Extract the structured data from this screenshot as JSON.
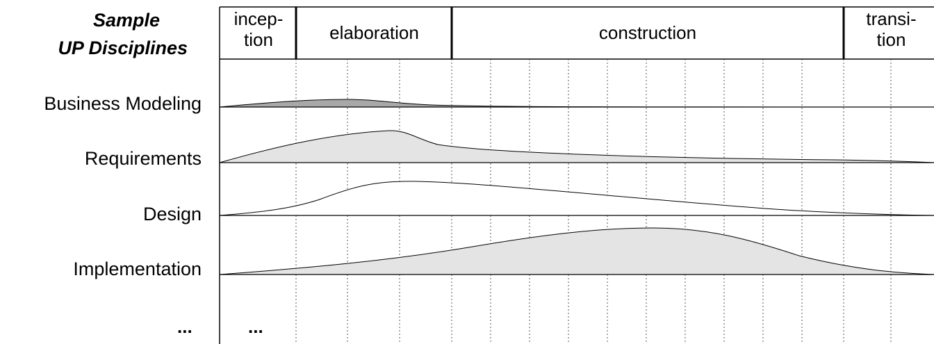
{
  "title": {
    "line1": "Sample",
    "line2": "UP Disciplines"
  },
  "phases": [
    {
      "id": "inception",
      "line1": "incep-",
      "line2": "tion"
    },
    {
      "id": "elaboration",
      "line1": "elaboration",
      "line2": ""
    },
    {
      "id": "construction",
      "line1": "construction",
      "line2": ""
    },
    {
      "id": "transition",
      "line1": "transi-",
      "line2": "tion"
    }
  ],
  "disciplines": [
    {
      "id": "business-modeling",
      "label": "Business Modeling",
      "fill": "#a8a8a8"
    },
    {
      "id": "requirements",
      "label": "Requirements",
      "fill": "#e4e4e4"
    },
    {
      "id": "design",
      "label": "Design",
      "fill": "#ffffff"
    },
    {
      "id": "implementation",
      "label": "Implementation",
      "fill": "#e4e4e4"
    }
  ],
  "more": {
    "label_ellipsis": "...",
    "cell_ellipsis": "..."
  }
}
